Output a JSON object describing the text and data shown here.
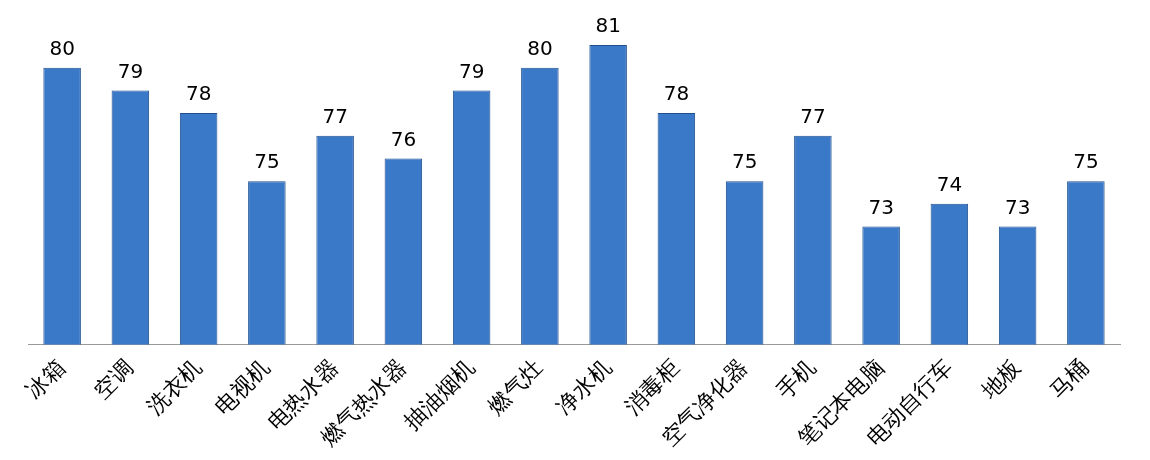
{
  "chart_data": {
    "type": "bar",
    "categories": [
      "冰箱",
      "空调",
      "洗衣机",
      "电视机",
      "电热水器",
      "燃气热水器",
      "抽油烟机",
      "燃气灶",
      "净水机",
      "消毒柜",
      "空气净化器",
      "手机",
      "笔记本电脑",
      "电动自行车",
      "地板",
      "马桶"
    ],
    "values": [
      80,
      79,
      78,
      75,
      77,
      76,
      79,
      80,
      81,
      78,
      75,
      77,
      73,
      74,
      73,
      75
    ],
    "color": "#3a78c8",
    "data_labels": true,
    "tick_labels": "x"
  }
}
